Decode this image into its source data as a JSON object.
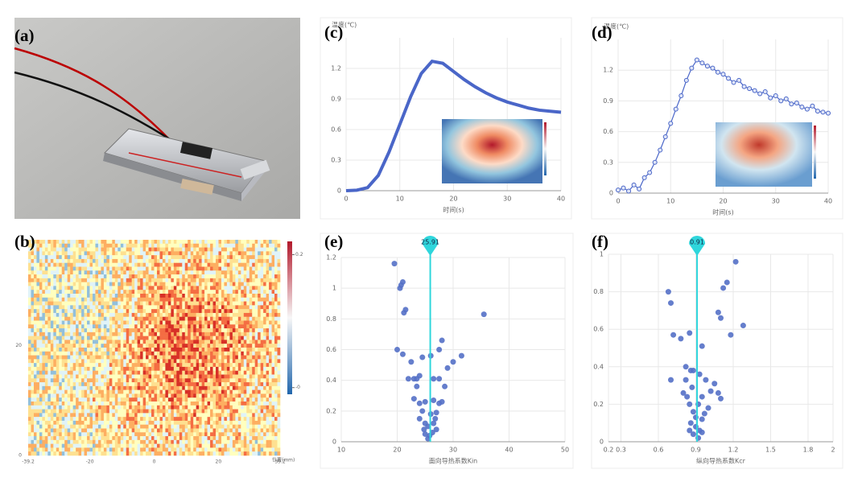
{
  "chart_data": [
    {
      "type": "image",
      "label": "(a)"
    },
    {
      "type": "heatmap",
      "label": "(b)",
      "xlabel": "位置(mm)",
      "xlim": [
        -39.2,
        39.2
      ],
      "xticks": [
        -39.2,
        -20,
        0,
        20,
        39.2
      ],
      "ylim": [
        0,
        39.2
      ],
      "yticks": [
        0,
        20
      ],
      "clim": [
        -0.01,
        0.22
      ],
      "cticks": [
        0.2,
        {
          "value": 0,
          "label": "-0"
        }
      ]
    },
    {
      "type": "line",
      "label": "(c)",
      "ylabel": "温度(℃)",
      "xlabel": "时间(s)",
      "color": "#4a66c8",
      "grid": true,
      "markers": false,
      "x": [
        0,
        2,
        4,
        6,
        8,
        10,
        12,
        14,
        16,
        18,
        20,
        22,
        24,
        26,
        28,
        30,
        32,
        34,
        36,
        38,
        40
      ],
      "values": [
        0,
        0.005,
        0.03,
        0.15,
        0.38,
        0.65,
        0.92,
        1.15,
        1.27,
        1.25,
        1.17,
        1.09,
        1.02,
        0.96,
        0.91,
        0.87,
        0.84,
        0.81,
        0.79,
        0.78,
        0.77
      ],
      "xlim": [
        0,
        40
      ],
      "xticks": [
        0,
        10,
        20,
        30,
        40
      ],
      "ylim": [
        0,
        1.5
      ],
      "yticks": [
        0,
        0.3,
        0.6,
        0.9,
        1.2
      ]
    },
    {
      "type": "line",
      "label": "(d)",
      "ylabel": "温度(℃)",
      "xlabel": "时间(s)",
      "color": "#4a66c8",
      "grid": true,
      "markers": true,
      "x": [
        0,
        1,
        2,
        3,
        4,
        5,
        6,
        7,
        8,
        9,
        10,
        11,
        12,
        13,
        14,
        15,
        16,
        17,
        18,
        19,
        20,
        21,
        22,
        23,
        24,
        25,
        26,
        27,
        28,
        29,
        30,
        31,
        32,
        33,
        34,
        35,
        36,
        37,
        38,
        39,
        40
      ],
      "values": [
        0.03,
        0.05,
        0.02,
        0.08,
        0.04,
        0.15,
        0.2,
        0.3,
        0.42,
        0.55,
        0.68,
        0.82,
        0.95,
        1.1,
        1.22,
        1.3,
        1.27,
        1.24,
        1.22,
        1.18,
        1.16,
        1.12,
        1.08,
        1.1,
        1.04,
        1.02,
        1.0,
        0.97,
        0.99,
        0.93,
        0.95,
        0.9,
        0.92,
        0.87,
        0.88,
        0.84,
        0.82,
        0.85,
        0.8,
        0.79,
        0.78
      ],
      "xlim": [
        0,
        40
      ],
      "xticks": [
        0,
        10,
        20,
        30,
        40
      ],
      "ylim": [
        0,
        1.5
      ],
      "yticks": [
        0,
        0.3,
        0.6,
        0.9,
        1.2
      ]
    },
    {
      "type": "scatter",
      "label": "(e)",
      "xlabel": "面向导热系数Kin",
      "color": "#5470c6",
      "grid": true,
      "marker_x": 25.91,
      "marker_color": "#2fd6dc",
      "x": [
        19.5,
        20.5,
        21,
        20.7,
        21.5,
        21.2,
        35.5,
        28,
        27.5,
        20,
        21,
        22.5,
        24.5,
        26,
        31.5,
        30,
        22,
        23,
        23.5,
        24,
        26.5,
        27.5,
        29,
        23.5,
        28.5,
        23,
        24,
        25,
        26.5,
        27.5,
        28,
        24.5,
        26,
        27,
        24,
        25,
        25.5,
        26.5,
        27,
        25,
        25.8,
        26.3,
        25.5,
        24.8,
        26.8
      ],
      "values": [
        1.16,
        1.0,
        1.04,
        1.02,
        0.86,
        0.84,
        0.83,
        0.66,
        0.6,
        0.6,
        0.57,
        0.52,
        0.55,
        0.56,
        0.56,
        0.52,
        0.41,
        0.41,
        0.41,
        0.43,
        0.41,
        0.41,
        0.48,
        0.36,
        0.36,
        0.28,
        0.25,
        0.26,
        0.27,
        0.25,
        0.26,
        0.2,
        0.18,
        0.19,
        0.15,
        0.12,
        0.1,
        0.12,
        0.08,
        0.05,
        0.04,
        0.06,
        0.02,
        0.08,
        0.15
      ],
      "xlim": [
        10,
        50
      ],
      "xticks": [
        10,
        20,
        30,
        40,
        50
      ],
      "ylim": [
        0,
        1.2
      ],
      "yticks": [
        0,
        0.2,
        0.4,
        0.6,
        0.8,
        1,
        1.2
      ]
    },
    {
      "type": "scatter",
      "label": "(f)",
      "xlabel": "纵向导热系数Kcr",
      "color": "#5470c6",
      "grid": true,
      "marker_x": 0.91,
      "marker_color": "#2fd6dc",
      "x": [
        0.68,
        0.7,
        1.22,
        1.15,
        1.12,
        1.08,
        1.1,
        1.28,
        0.72,
        0.78,
        0.85,
        1.18,
        0.95,
        0.82,
        0.86,
        0.88,
        0.93,
        0.7,
        0.82,
        0.98,
        1.05,
        0.87,
        1.02,
        1.08,
        0.8,
        0.83,
        1.1,
        0.95,
        0.85,
        0.92,
        1.0,
        0.88,
        0.9,
        0.95,
        0.86,
        0.9,
        0.93,
        0.88,
        0.92,
        0.95,
        0.85,
        0.97
      ],
      "values": [
        0.8,
        0.74,
        0.96,
        0.85,
        0.82,
        0.69,
        0.66,
        0.62,
        0.57,
        0.55,
        0.58,
        0.57,
        0.51,
        0.4,
        0.38,
        0.38,
        0.36,
        0.33,
        0.33,
        0.33,
        0.31,
        0.29,
        0.27,
        0.26,
        0.26,
        0.24,
        0.23,
        0.24,
        0.2,
        0.2,
        0.18,
        0.16,
        0.13,
        0.12,
        0.1,
        0.08,
        0.06,
        0.04,
        0.02,
        0.05,
        0.06,
        0.15
      ],
      "xlim": [
        0.2,
        2
      ],
      "xticks": [
        0.2,
        0.3,
        0.6,
        0.9,
        1.2,
        1.5,
        1.8,
        2
      ],
      "ylim": [
        0,
        1
      ],
      "yticks": [
        0,
        0.2,
        0.4,
        0.6,
        0.8,
        1
      ]
    }
  ]
}
